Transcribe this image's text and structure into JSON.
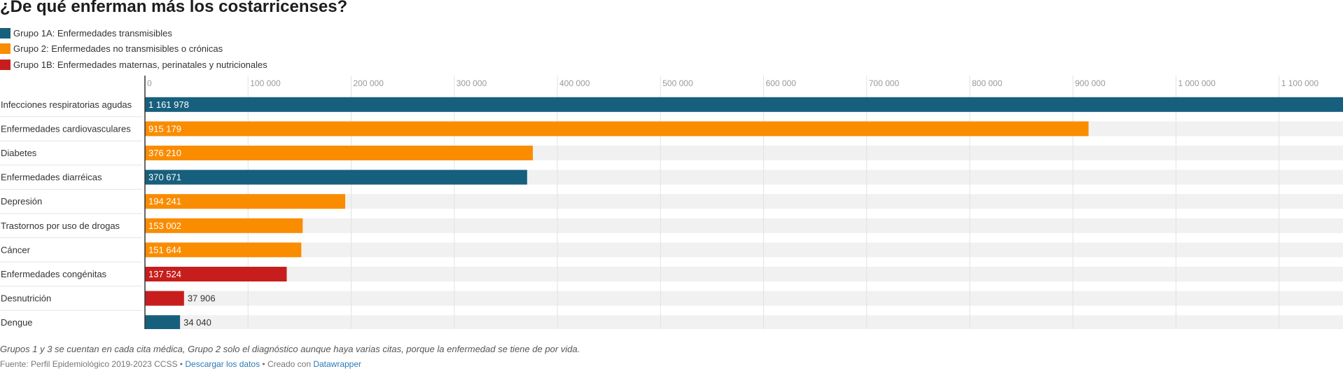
{
  "title": "¿De qué enferman más los costarricenses?",
  "legend": [
    {
      "label": "Grupo 1A: Enfermedades transmisibles",
      "color": "#17607d"
    },
    {
      "label": "Grupo 2: Enfermedades no transmisibles o crónicas",
      "color": "#fa8c00"
    },
    {
      "label": "Grupo 1B: Enfermedades maternas, perinatales y nutricionales",
      "color": "#c71e1d"
    }
  ],
  "chart_data": {
    "type": "bar",
    "orientation": "horizontal",
    "title": "¿De qué enferman más los costarricenses?",
    "xlim": [
      0,
      1161978
    ],
    "ticks": [
      {
        "value": 0,
        "label": "0"
      },
      {
        "value": 100000,
        "label": "100 000"
      },
      {
        "value": 200000,
        "label": "200 000"
      },
      {
        "value": 300000,
        "label": "300 000"
      },
      {
        "value": 400000,
        "label": "400 000"
      },
      {
        "value": 500000,
        "label": "500 000"
      },
      {
        "value": 600000,
        "label": "600 000"
      },
      {
        "value": 700000,
        "label": "700 000"
      },
      {
        "value": 800000,
        "label": "800 000"
      },
      {
        "value": 900000,
        "label": "900 000"
      },
      {
        "value": 1000000,
        "label": "1 000 000"
      },
      {
        "value": 1100000,
        "label": "1 100 000"
      }
    ],
    "bars": [
      {
        "category": "Infecciones respiratorias agudas",
        "value": 1161978,
        "label": "1 161 978",
        "group": 0
      },
      {
        "category": "Enfermedades cardiovasculares",
        "value": 915179,
        "label": "915 179",
        "group": 1
      },
      {
        "category": "Diabetes",
        "value": 376210,
        "label": "376 210",
        "group": 1
      },
      {
        "category": "Enfermedades diarréicas",
        "value": 370671,
        "label": "370 671",
        "group": 0
      },
      {
        "category": "Depresión",
        "value": 194241,
        "label": "194 241",
        "group": 1
      },
      {
        "category": "Trastornos por uso de drogas",
        "value": 153002,
        "label": "153 002",
        "group": 1
      },
      {
        "category": "Cáncer",
        "value": 151644,
        "label": "151 644",
        "group": 1
      },
      {
        "category": "Enfermedades congénitas",
        "value": 137524,
        "label": "137 524",
        "group": 2
      },
      {
        "category": "Desnutrición",
        "value": 37906,
        "label": "37 906",
        "group": 2
      },
      {
        "category": "Dengue",
        "value": 34040,
        "label": "34 040",
        "group": 0
      }
    ]
  },
  "footnote": "Grupos 1 y 3 se cuentan en cada cita médica, Grupo 2 solo el diagnóstico aunque haya varias citas, porque la enfermedad se tiene de por vida.",
  "source": {
    "prefix": "Fuente: Perfil Epidemiológico 2019-2023 CCSS • ",
    "download": "Descargar los datos",
    "middle": " • Creado con ",
    "tool": "Datawrapper"
  }
}
